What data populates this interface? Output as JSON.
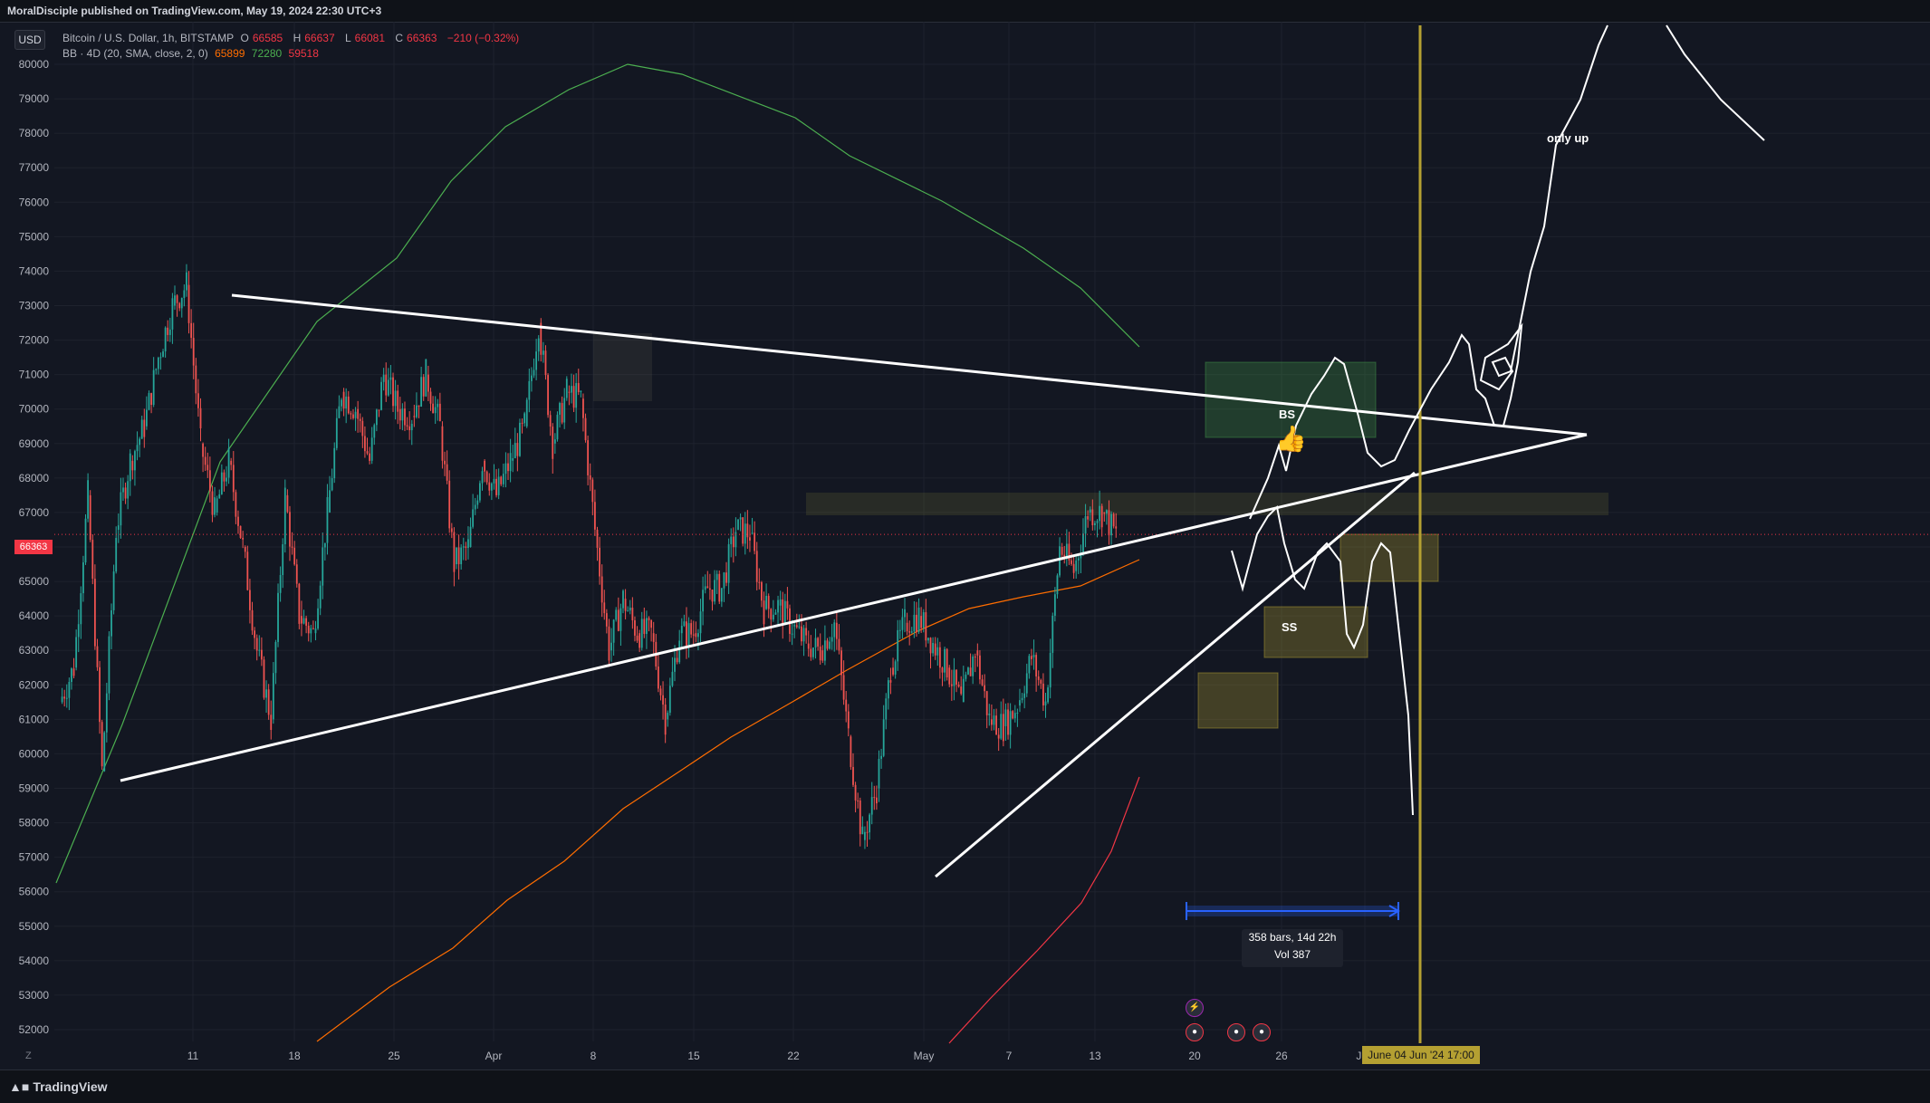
{
  "header": {
    "publisher_line": "MoralDisciple published on TradingView.com, May 19, 2024 22:30 UTC+3"
  },
  "toolbar": {
    "currency_button": "USD",
    "z_button": "Z"
  },
  "legend": {
    "symbol": "Bitcoin / U.S. Dollar, 1h, BITSTAMP",
    "o_label": "O",
    "o_value": "66585",
    "h_label": "H",
    "h_value": "66637",
    "l_label": "L",
    "l_value": "66081",
    "c_label": "C",
    "c_value": "66363",
    "change": "−210 (−0.32%)",
    "bb_label": "BB · 4D (20, SMA, close, 2, 0)",
    "bb_basis": "65899",
    "bb_upper": "72280",
    "bb_lower": "59518"
  },
  "price_tag": "66363",
  "date_tag": "June 04 Jun '24   17:00",
  "measure": {
    "line1": "358 bars, 14d 22h",
    "line2": "Vol 387"
  },
  "annotations": {
    "bs": "BS",
    "ss": "SS",
    "only_up": "only up",
    "thumb": "👍"
  },
  "footer": {
    "brand": "TradingView"
  },
  "colors": {
    "background": "#131722",
    "up_candle": "#26a69a",
    "down_candle": "#ef5350",
    "bb_basis": "#ff6d00",
    "bb_upper": "#4caf50",
    "bb_lower": "#f23645",
    "trendline": "#ffffff",
    "vertical_marker": "#b4a032",
    "measure": "#2962ff"
  },
  "chart_data": {
    "type": "candlestick",
    "symbol": "BTCUSD",
    "exchange": "BITSTAMP",
    "interval": "1h",
    "ylim": [
      51500,
      81500
    ],
    "y_ticks": [
      52000,
      53000,
      54000,
      55000,
      56000,
      57000,
      58000,
      59000,
      60000,
      61000,
      62000,
      63000,
      64000,
      65000,
      66000,
      67000,
      68000,
      69000,
      70000,
      71000,
      72000,
      73000,
      74000,
      75000,
      76000,
      77000,
      78000,
      79000,
      80000
    ],
    "x_ticks": [
      "11",
      "18",
      "25",
      "Apr",
      "8",
      "15",
      "22",
      "May",
      "7",
      "13",
      "20",
      "26",
      "Jun"
    ],
    "last_price": 66363,
    "price_path": [
      {
        "d": "Mar 5",
        "p": 61500
      },
      {
        "d": "Mar 6",
        "p": 62500
      },
      {
        "d": "Mar 7",
        "p": 67500
      },
      {
        "d": "Mar 8",
        "p": 59500
      },
      {
        "d": "Mar 9",
        "p": 66500
      },
      {
        "d": "Mar 10",
        "p": 68500
      },
      {
        "d": "Mar 11",
        "p": 69500
      },
      {
        "d": "Mar 12",
        "p": 71500
      },
      {
        "d": "Mar 13",
        "p": 73000
      },
      {
        "d": "Mar 14",
        "p": 73600
      },
      {
        "d": "Mar 15",
        "p": 69000
      },
      {
        "d": "Mar 16",
        "p": 67000
      },
      {
        "d": "Mar 17",
        "p": 68500
      },
      {
        "d": "Mar 18",
        "p": 66000
      },
      {
        "d": "Mar 19",
        "p": 63000
      },
      {
        "d": "Mar 20",
        "p": 61000
      },
      {
        "d": "Mar 21",
        "p": 67500
      },
      {
        "d": "Mar 22",
        "p": 64000
      },
      {
        "d": "Mar 23",
        "p": 63500
      },
      {
        "d": "Mar 24",
        "p": 67000
      },
      {
        "d": "Mar 25",
        "p": 70500
      },
      {
        "d": "Mar 26",
        "p": 70000
      },
      {
        "d": "Mar 27",
        "p": 68500
      },
      {
        "d": "Mar 28",
        "p": 71000
      },
      {
        "d": "Mar 29",
        "p": 70000
      },
      {
        "d": "Mar 30",
        "p": 69800
      },
      {
        "d": "Mar 31",
        "p": 71000
      },
      {
        "d": "Apr 1",
        "p": 69500
      },
      {
        "d": "Apr 2",
        "p": 65500
      },
      {
        "d": "Apr 3",
        "p": 66000
      },
      {
        "d": "Apr 4",
        "p": 68500
      },
      {
        "d": "Apr 5",
        "p": 67500
      },
      {
        "d": "Apr 6",
        "p": 68500
      },
      {
        "d": "Apr 7",
        "p": 69500
      },
      {
        "d": "Apr 8",
        "p": 72500
      },
      {
        "d": "Apr 9",
        "p": 69000
      },
      {
        "d": "Apr 10",
        "p": 70500
      },
      {
        "d": "Apr 11",
        "p": 70300
      },
      {
        "d": "Apr 12",
        "p": 66500
      },
      {
        "d": "Apr 13",
        "p": 63000
      },
      {
        "d": "Apr 14",
        "p": 64500
      },
      {
        "d": "Apr 15",
        "p": 63500
      },
      {
        "d": "Apr 16",
        "p": 63500
      },
      {
        "d": "Apr 17",
        "p": 61000
      },
      {
        "d": "Apr 18",
        "p": 63500
      },
      {
        "d": "Apr 19",
        "p": 63500
      },
      {
        "d": "Apr 20",
        "p": 64800
      },
      {
        "d": "Apr 21",
        "p": 64800
      },
      {
        "d": "Apr 22",
        "p": 66500
      },
      {
        "d": "Apr 23",
        "p": 66400
      },
      {
        "d": "Apr 24",
        "p": 64200
      },
      {
        "d": "Apr 25",
        "p": 64300
      },
      {
        "d": "Apr 26",
        "p": 63700
      },
      {
        "d": "Apr 27",
        "p": 63200
      },
      {
        "d": "Apr 28",
        "p": 63000
      },
      {
        "d": "Apr 29",
        "p": 63800
      },
      {
        "d": "Apr 30",
        "p": 60500
      },
      {
        "d": "May 1",
        "p": 57500
      },
      {
        "d": "May 2",
        "p": 59000
      },
      {
        "d": "May 3",
        "p": 62500
      },
      {
        "d": "May 4",
        "p": 63800
      },
      {
        "d": "May 5",
        "p": 64000
      },
      {
        "d": "May 6",
        "p": 63200
      },
      {
        "d": "May 7",
        "p": 62500
      },
      {
        "d": "May 8",
        "p": 61500
      },
      {
        "d": "May 9",
        "p": 63000
      },
      {
        "d": "May 10",
        "p": 61000
      },
      {
        "d": "May 11",
        "p": 60800
      },
      {
        "d": "May 12",
        "p": 61400
      },
      {
        "d": "May 13",
        "p": 62800
      },
      {
        "d": "May 14",
        "p": 61500
      },
      {
        "d": "May 15",
        "p": 66000
      },
      {
        "d": "May 16",
        "p": 65300
      },
      {
        "d": "May 17",
        "p": 67000
      },
      {
        "d": "May 18",
        "p": 67000
      },
      {
        "d": "May 19",
        "p": 66363
      }
    ],
    "bollinger": {
      "params": "20, SMA, close, 2, 0",
      "basis": 65899,
      "upper": 72280,
      "lower": 59518
    }
  }
}
